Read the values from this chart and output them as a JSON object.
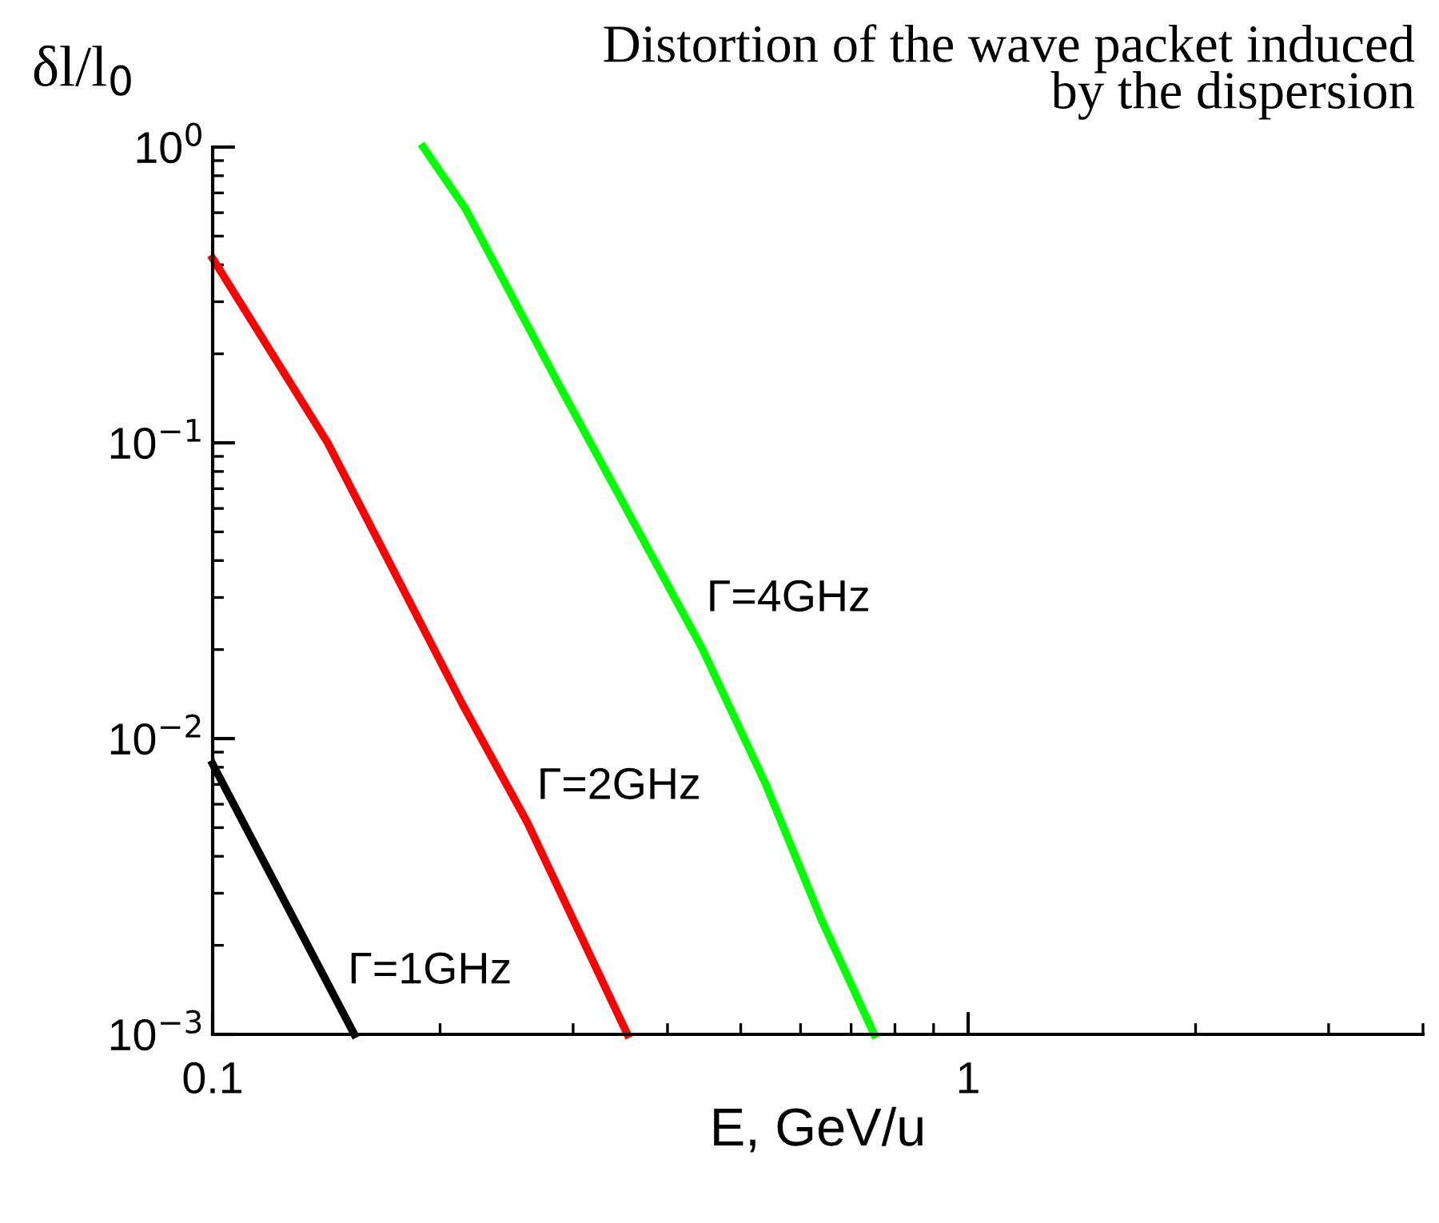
{
  "chart_data": {
    "type": "line",
    "title": "Distortion of the wave packet induced\nby the dispersion",
    "xlabel": "E, GeV/u",
    "ylabel": "δl/l$_{0}$",
    "log": "xy",
    "grid": false,
    "legend": false,
    "marker": "none",
    "line_style": "solid",
    "xlim": [
      0.1,
      4
    ],
    "xticks": [
      0.1,
      1
    ],
    "ylim": [
      0.001,
      1
    ],
    "yticks": [
      {
        "value": 0.001,
        "label": "10$^{−3}$"
      },
      {
        "value": 0.01,
        "label": "10$^{−2}$"
      },
      {
        "value": 0.1,
        "label": "10$^{−1}$"
      },
      {
        "value": 1,
        "label": "10$^{0}$"
      }
    ],
    "series": [
      {
        "name": "Γ=1GHz",
        "color": "#000000",
        "x": [
          0.1,
          0.154
        ],
        "values": [
          0.0082,
          0.001
        ]
      },
      {
        "name": "Γ=2GHz",
        "color": "#ff0000",
        "x": [
          0.1,
          0.142,
          0.214,
          0.261,
          0.354
        ],
        "values": [
          0.42,
          0.1,
          0.0131,
          0.0052,
          0.001
        ]
      },
      {
        "name": "Γ=4GHz",
        "color": "#00ff00",
        "x": [
          0.19,
          0.216,
          0.287,
          0.444,
          0.539,
          0.639,
          0.751
        ],
        "values": [
          1,
          0.62,
          0.158,
          0.0203,
          0.00706,
          0.00245,
          0.001
        ]
      }
    ]
  }
}
